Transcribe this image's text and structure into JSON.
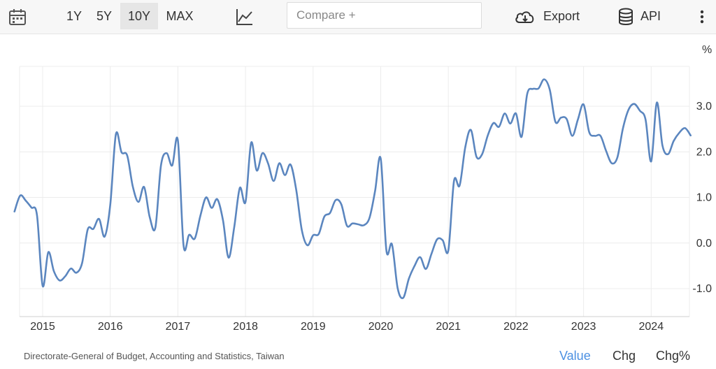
{
  "toolbar": {
    "calendar_icon": "calendar-icon",
    "ranges": [
      {
        "label": "1Y",
        "active": false
      },
      {
        "label": "5Y",
        "active": false
      },
      {
        "label": "10Y",
        "active": true
      },
      {
        "label": "MAX",
        "active": false
      }
    ],
    "chart_type_icon": "line-chart-icon",
    "compare_placeholder": "Compare +",
    "export_label": "Export",
    "export_icon": "cloud-download-icon",
    "api_label": "API",
    "api_icon": "database-icon",
    "more_icon": "more-vertical-icon"
  },
  "chart_data": {
    "type": "line",
    "unit_label": "%",
    "x_ticks": [
      "2015",
      "2016",
      "2017",
      "2018",
      "2019",
      "2020",
      "2021",
      "2022",
      "2023",
      "2024"
    ],
    "y_ticks": [
      {
        "value": 3.0,
        "label": "3.0"
      },
      {
        "value": 2.0,
        "label": "2.0"
      },
      {
        "value": 1.0,
        "label": "1.0"
      },
      {
        "value": 0.0,
        "label": "0.0"
      },
      {
        "value": -1.0,
        "label": "-1.0"
      }
    ],
    "ylim": [
      -1.6,
      3.9
    ],
    "grid": true,
    "color": "#5b86bf",
    "series": [
      {
        "values": [
          [
            "2014-08",
            0.69
          ],
          [
            "2014-09",
            1.04
          ],
          [
            "2014-10",
            0.93
          ],
          [
            "2014-11",
            0.78
          ],
          [
            "2014-12",
            0.61
          ],
          [
            "2015-01",
            -0.94
          ],
          [
            "2015-02",
            -0.2
          ],
          [
            "2015-03",
            -0.62
          ],
          [
            "2015-04",
            -0.82
          ],
          [
            "2015-05",
            -0.73
          ],
          [
            "2015-06",
            -0.56
          ],
          [
            "2015-07",
            -0.65
          ],
          [
            "2015-08",
            -0.44
          ],
          [
            "2015-09",
            0.3
          ],
          [
            "2015-10",
            0.31
          ],
          [
            "2015-11",
            0.53
          ],
          [
            "2015-12",
            0.14
          ],
          [
            "2016-01",
            0.84
          ],
          [
            "2016-02",
            2.39
          ],
          [
            "2016-03",
            1.99
          ],
          [
            "2016-04",
            1.92
          ],
          [
            "2016-05",
            1.24
          ],
          [
            "2016-06",
            0.9
          ],
          [
            "2016-07",
            1.23
          ],
          [
            "2016-08",
            0.57
          ],
          [
            "2016-09",
            0.34
          ],
          [
            "2016-10",
            1.7
          ],
          [
            "2016-11",
            1.97
          ],
          [
            "2016-12",
            1.7
          ],
          [
            "2017-01",
            2.25
          ],
          [
            "2017-02",
            -0.05
          ],
          [
            "2017-03",
            0.18
          ],
          [
            "2017-04",
            0.1
          ],
          [
            "2017-05",
            0.6
          ],
          [
            "2017-06",
            1.0
          ],
          [
            "2017-07",
            0.77
          ],
          [
            "2017-08",
            0.96
          ],
          [
            "2017-09",
            0.5
          ],
          [
            "2017-10",
            -0.32
          ],
          [
            "2017-11",
            0.35
          ],
          [
            "2017-12",
            1.21
          ],
          [
            "2018-01",
            0.9
          ],
          [
            "2018-02",
            2.2
          ],
          [
            "2018-03",
            1.59
          ],
          [
            "2018-04",
            1.97
          ],
          [
            "2018-05",
            1.75
          ],
          [
            "2018-06",
            1.36
          ],
          [
            "2018-07",
            1.75
          ],
          [
            "2018-08",
            1.49
          ],
          [
            "2018-09",
            1.72
          ],
          [
            "2018-10",
            1.17
          ],
          [
            "2018-11",
            0.28
          ],
          [
            "2018-12",
            -0.05
          ],
          [
            "2019-01",
            0.17
          ],
          [
            "2019-02",
            0.2
          ],
          [
            "2019-03",
            0.58
          ],
          [
            "2019-04",
            0.66
          ],
          [
            "2019-05",
            0.94
          ],
          [
            "2019-06",
            0.85
          ],
          [
            "2019-07",
            0.38
          ],
          [
            "2019-08",
            0.43
          ],
          [
            "2019-09",
            0.41
          ],
          [
            "2019-10",
            0.39
          ],
          [
            "2019-11",
            0.55
          ],
          [
            "2019-12",
            1.14
          ],
          [
            "2020-01",
            1.85
          ],
          [
            "2020-02",
            -0.16
          ],
          [
            "2020-03",
            -0.03
          ],
          [
            "2020-04",
            -0.99
          ],
          [
            "2020-05",
            -1.2
          ],
          [
            "2020-06",
            -0.78
          ],
          [
            "2020-07",
            -0.5
          ],
          [
            "2020-08",
            -0.31
          ],
          [
            "2020-09",
            -0.57
          ],
          [
            "2020-10",
            -0.24
          ],
          [
            "2020-11",
            0.08
          ],
          [
            "2020-12",
            0.06
          ],
          [
            "2021-01",
            -0.16
          ],
          [
            "2021-02",
            1.36
          ],
          [
            "2021-03",
            1.26
          ],
          [
            "2021-04",
            2.1
          ],
          [
            "2021-05",
            2.48
          ],
          [
            "2021-06",
            1.89
          ],
          [
            "2021-07",
            1.95
          ],
          [
            "2021-08",
            2.36
          ],
          [
            "2021-09",
            2.63
          ],
          [
            "2021-10",
            2.55
          ],
          [
            "2021-11",
            2.84
          ],
          [
            "2021-12",
            2.62
          ],
          [
            "2022-01",
            2.84
          ],
          [
            "2022-02",
            2.33
          ],
          [
            "2022-03",
            3.27
          ],
          [
            "2022-04",
            3.38
          ],
          [
            "2022-05",
            3.39
          ],
          [
            "2022-06",
            3.59
          ],
          [
            "2022-07",
            3.36
          ],
          [
            "2022-08",
            2.66
          ],
          [
            "2022-09",
            2.75
          ],
          [
            "2022-10",
            2.72
          ],
          [
            "2022-11",
            2.35
          ],
          [
            "2022-12",
            2.71
          ],
          [
            "2023-01",
            3.04
          ],
          [
            "2023-02",
            2.43
          ],
          [
            "2023-03",
            2.35
          ],
          [
            "2023-04",
            2.35
          ],
          [
            "2023-05",
            2.02
          ],
          [
            "2023-06",
            1.75
          ],
          [
            "2023-07",
            1.88
          ],
          [
            "2023-08",
            2.52
          ],
          [
            "2023-09",
            2.93
          ],
          [
            "2023-10",
            3.05
          ],
          [
            "2023-11",
            2.9
          ],
          [
            "2023-12",
            2.71
          ],
          [
            "2024-01",
            1.79
          ],
          [
            "2024-02",
            3.08
          ],
          [
            "2024-03",
            2.14
          ],
          [
            "2024-04",
            1.95
          ],
          [
            "2024-05",
            2.24
          ],
          [
            "2024-06",
            2.42
          ],
          [
            "2024-07",
            2.52
          ],
          [
            "2024-08",
            2.36
          ]
        ]
      }
    ]
  },
  "footer": {
    "source": "Directorate-General of Budget, Accounting and Statistics, Taiwan",
    "tabs": [
      {
        "label": "Value",
        "active": true
      },
      {
        "label": "Chg",
        "active": false
      },
      {
        "label": "Chg%",
        "active": false
      }
    ]
  }
}
